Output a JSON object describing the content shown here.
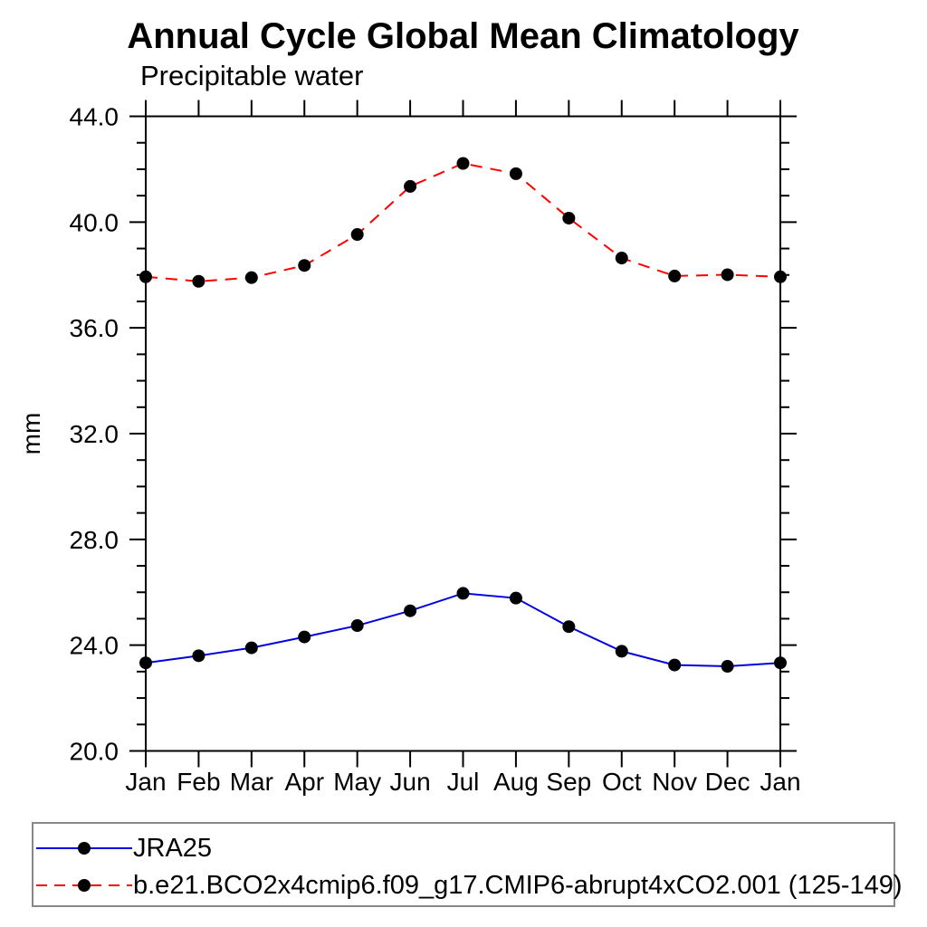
{
  "page": {
    "background_color": "#ffffff",
    "frame_color": "#000000",
    "legend_border_color": "#888888"
  },
  "chart_data": {
    "type": "line",
    "title": "Annual Cycle Global Mean Climatology",
    "subtitle": "Precipitable water",
    "ylabel": "mm",
    "xlabel": "",
    "categories": [
      "Jan",
      "Feb",
      "Mar",
      "Apr",
      "May",
      "Jun",
      "Jul",
      "Aug",
      "Sep",
      "Oct",
      "Nov",
      "Dec",
      "Jan"
    ],
    "ylim": [
      20.0,
      44.0
    ],
    "ytick_labels": [
      "20.0",
      "24.0",
      "28.0",
      "32.0",
      "36.0",
      "40.0",
      "44.0"
    ],
    "ytick_major_step": 4.0,
    "ytick_minor_step": 1.0,
    "grid": false,
    "tick_style": "outward-all-sides",
    "legend_position": "bottom-left-box",
    "marker": {
      "shape": "circle",
      "color": "#000000"
    },
    "series": [
      {
        "name": "JRA25",
        "color": "#0000e0",
        "line_style": "solid",
        "values": [
          23.33,
          23.6,
          23.9,
          24.31,
          24.74,
          25.3,
          25.96,
          25.78,
          24.7,
          23.77,
          23.25,
          23.2,
          23.33
        ]
      },
      {
        "name": "b.e21.BCO2x4cmip6.f09_g17.CMIP6-abrupt4xCO2.001 (125-149)",
        "color": "#ff0000",
        "line_style": "dashed",
        "values": [
          37.93,
          37.76,
          37.9,
          38.36,
          39.53,
          41.35,
          42.22,
          41.83,
          40.15,
          38.64,
          37.96,
          38.01,
          37.93
        ]
      }
    ]
  }
}
